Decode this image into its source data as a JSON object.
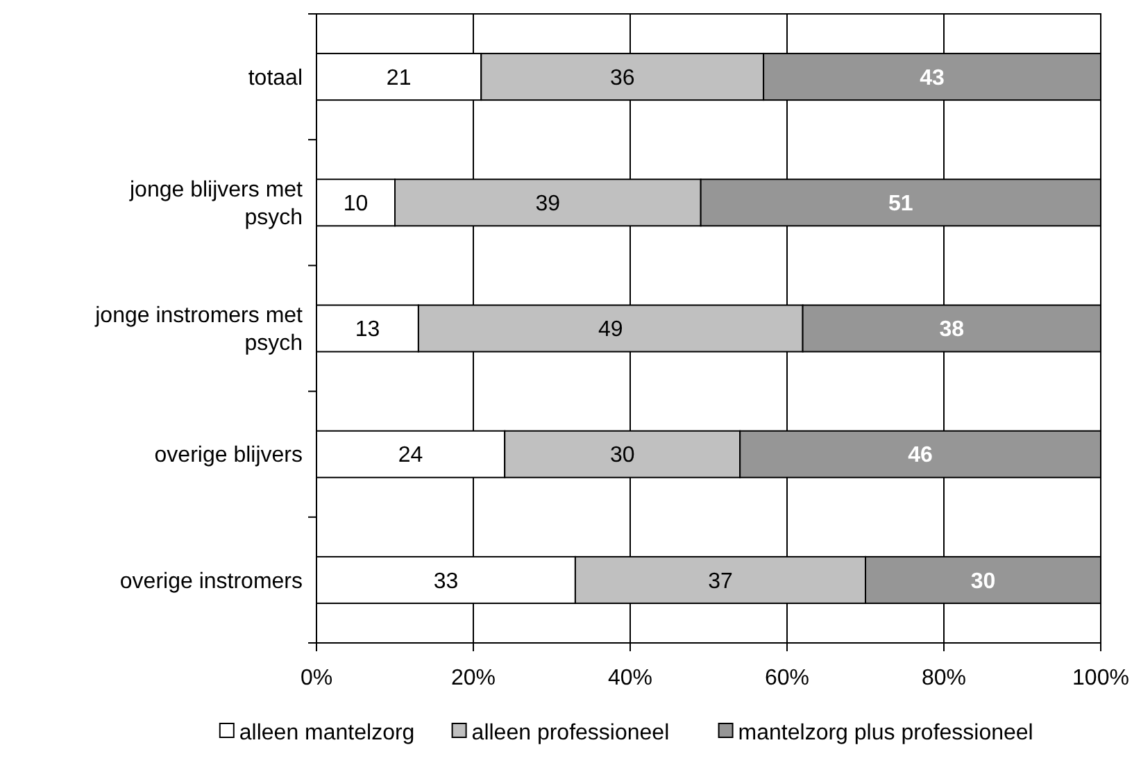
{
  "chart_data": {
    "type": "bar",
    "orientation": "horizontal",
    "stacked": true,
    "categories": [
      "totaal",
      "jonge blijvers met psych",
      "jonge instromers met psych",
      "overige blijvers",
      "overige instromers"
    ],
    "series": [
      {
        "name": "alleen mantelzorg",
        "color": "#ffffff",
        "values": [
          21,
          10,
          13,
          24,
          33
        ]
      },
      {
        "name": "alleen professioneel",
        "color": "#c0c0c0",
        "values": [
          36,
          39,
          49,
          30,
          37
        ]
      },
      {
        "name": "mantelzorg plus professioneel",
        "color": "#969696",
        "values": [
          43,
          51,
          38,
          46,
          30
        ]
      }
    ],
    "xlim": [
      0,
      100
    ],
    "xticks": [
      {
        "value": 0,
        "label": "0%"
      },
      {
        "value": 20,
        "label": "20%"
      },
      {
        "value": 40,
        "label": "40%"
      },
      {
        "value": 60,
        "label": "60%"
      },
      {
        "value": 80,
        "label": "80%"
      },
      {
        "value": 100,
        "label": "100%"
      }
    ],
    "grid": "x",
    "legend": "bottom",
    "data_labels": true
  }
}
